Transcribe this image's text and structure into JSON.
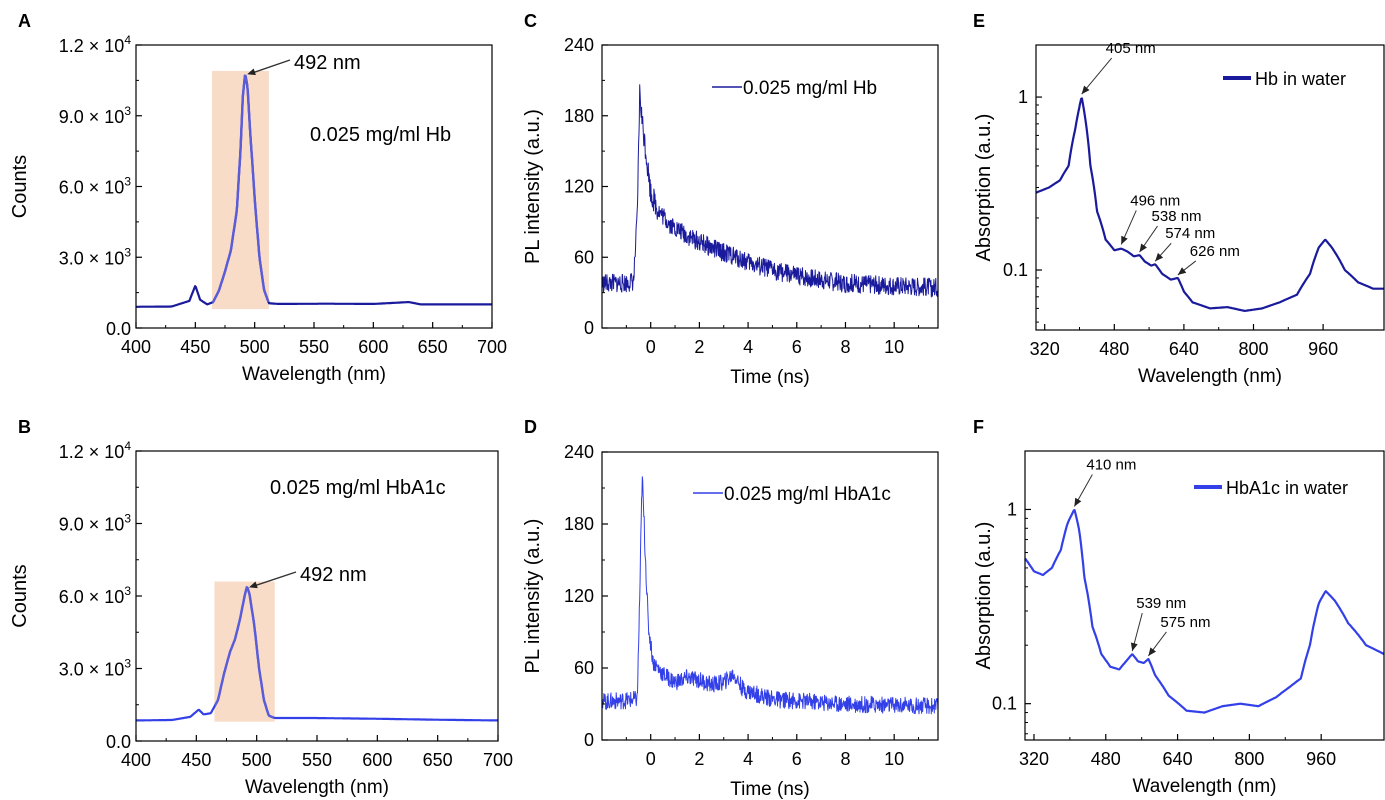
{
  "colors": {
    "dark_blue": "#1a1a9c",
    "blue": "#3340e8",
    "mid_blue": "#5a5cd8",
    "highlight": "#f8dcc8",
    "arrow": "#333333"
  },
  "chart_data": [
    {
      "panel": "A",
      "type": "line",
      "xlabel": "Wavelength (nm)",
      "ylabel": "Counts",
      "xlim": [
        400,
        700
      ],
      "ylim": [
        0,
        12000
      ],
      "xticks": [
        400,
        450,
        500,
        550,
        600,
        650,
        700
      ],
      "yticks": [
        0,
        3000,
        6000,
        9000,
        12000
      ],
      "ytick_labels": [
        {
          "m": "0.0",
          "e": ""
        },
        {
          "m": "3.0 × 10",
          "e": "3"
        },
        {
          "m": "6.0 × 10",
          "e": "3"
        },
        {
          "m": "9.0 × 10",
          "e": "3"
        },
        {
          "m": "1.2 × 10",
          "e": "4"
        }
      ],
      "annotation": "0.025 mg/ml Hb",
      "peak_label": "492 nm",
      "peak": {
        "x": 492,
        "y": 10800
      },
      "highlight": {
        "x": [
          464,
          512
        ],
        "y": [
          800,
          10900
        ]
      },
      "series": [
        {
          "points": [
            [
              400,
              900
            ],
            [
              430,
              910
            ],
            [
              445,
              1150
            ],
            [
              450,
              1800
            ],
            [
              454,
              1200
            ],
            [
              460,
              1000
            ],
            [
              465,
              1100
            ],
            [
              470,
              1600
            ],
            [
              475,
              2400
            ],
            [
              480,
              3300
            ],
            [
              485,
              5000
            ],
            [
              488,
              7500
            ],
            [
              490,
              9800
            ],
            [
              492,
              10800
            ],
            [
              494,
              10200
            ],
            [
              496,
              8500
            ],
            [
              500,
              5500
            ],
            [
              504,
              3000
            ],
            [
              508,
              1600
            ],
            [
              512,
              1050
            ],
            [
              520,
              1020
            ],
            [
              560,
              1030
            ],
            [
              600,
              1020
            ],
            [
              630,
              1100
            ],
            [
              640,
              1000
            ],
            [
              700,
              1000
            ]
          ]
        }
      ]
    },
    {
      "panel": "B",
      "type": "line",
      "xlabel": "Wavelength (nm)",
      "ylabel": "Counts",
      "xlim": [
        400,
        700
      ],
      "ylim": [
        0,
        12000
      ],
      "xticks": [
        400,
        450,
        500,
        550,
        600,
        650,
        700
      ],
      "yticks": [
        0,
        3000,
        6000,
        9000,
        12000
      ],
      "ytick_labels": [
        {
          "m": "0.0",
          "e": ""
        },
        {
          "m": "3.0 × 10",
          "e": "3"
        },
        {
          "m": "6.0 × 10",
          "e": "3"
        },
        {
          "m": "9.0 × 10",
          "e": "3"
        },
        {
          "m": "1.2 × 10",
          "e": "4"
        }
      ],
      "annotation": "0.025 mg/ml HbA1c",
      "peak_label": "492 nm",
      "peak": {
        "x": 492,
        "y": 6400
      },
      "highlight": {
        "x": [
          465,
          515
        ],
        "y": [
          800,
          6600
        ]
      },
      "series": [
        {
          "points": [
            [
              400,
              850
            ],
            [
              430,
              870
            ],
            [
              445,
              1000
            ],
            [
              452,
              1300
            ],
            [
              456,
              1100
            ],
            [
              462,
              1150
            ],
            [
              468,
              1700
            ],
            [
              473,
              2800
            ],
            [
              478,
              3700
            ],
            [
              482,
              4200
            ],
            [
              486,
              5000
            ],
            [
              490,
              6000
            ],
            [
              492,
              6400
            ],
            [
              494,
              6100
            ],
            [
              498,
              4800
            ],
            [
              502,
              3000
            ],
            [
              506,
              1700
            ],
            [
              510,
              1050
            ],
            [
              515,
              950
            ],
            [
              550,
              950
            ],
            [
              600,
              920
            ],
            [
              650,
              880
            ],
            [
              700,
              850
            ]
          ]
        }
      ]
    },
    {
      "panel": "C",
      "type": "line",
      "xlabel": "Time (ns)",
      "ylabel": "PL intensity (a.u.)",
      "xlim": [
        -2,
        11.8
      ],
      "ylim": [
        0,
        240
      ],
      "xticks": [
        0,
        2,
        4,
        6,
        8,
        10
      ],
      "yticks": [
        0,
        60,
        120,
        180,
        240
      ],
      "series": [
        {
          "name": "0.025 mg/ml Hb",
          "points": [
            [
              -2,
              38
            ],
            [
              -1,
              38
            ],
            [
              -0.7,
              40
            ],
            [
              -0.55,
              95
            ],
            [
              -0.45,
              200
            ],
            [
              -0.35,
              175
            ],
            [
              -0.2,
              150
            ],
            [
              0,
              115
            ],
            [
              0.3,
              100
            ],
            [
              0.8,
              88
            ],
            [
              1.5,
              78
            ],
            [
              2.5,
              68
            ],
            [
              3.5,
              60
            ],
            [
              4.5,
              52
            ],
            [
              6,
              44
            ],
            [
              8,
              38
            ],
            [
              11.8,
              34
            ]
          ],
          "noise": 8
        }
      ]
    },
    {
      "panel": "D",
      "type": "line",
      "xlabel": "Time (ns)",
      "ylabel": "PL intensity (a.u.)",
      "xlim": [
        -2,
        11.8
      ],
      "ylim": [
        0,
        240
      ],
      "xticks": [
        0,
        2,
        4,
        6,
        8,
        10
      ],
      "yticks": [
        0,
        60,
        120,
        180,
        240
      ],
      "series": [
        {
          "name": "0.025 mg/ml HbA1c",
          "points": [
            [
              -2,
              32
            ],
            [
              -1,
              33
            ],
            [
              -0.55,
              34
            ],
            [
              -0.45,
              120
            ],
            [
              -0.35,
              220
            ],
            [
              -0.25,
              170
            ],
            [
              -0.1,
              95
            ],
            [
              0.1,
              65
            ],
            [
              0.5,
              55
            ],
            [
              1,
              48
            ],
            [
              1.5,
              52
            ],
            [
              2,
              50
            ],
            [
              2.5,
              46
            ],
            [
              3,
              48
            ],
            [
              3.4,
              55
            ],
            [
              3.8,
              42
            ],
            [
              5,
              34
            ],
            [
              8,
              30
            ],
            [
              11.8,
              28
            ]
          ],
          "noise": 7
        }
      ]
    },
    {
      "panel": "E",
      "type": "line",
      "yscale": "log",
      "xlabel": "Wavelength (nm)",
      "ylabel": "Absorption (a.u.)",
      "xlim": [
        300,
        1100
      ],
      "ylim": [
        0.045,
        2.0
      ],
      "xticks": [
        320,
        480,
        640,
        800,
        960
      ],
      "ytick_labels": [
        "0.1",
        "1"
      ],
      "annotations": [
        {
          "text": "405 nm",
          "x": 405,
          "y": 1.0
        },
        {
          "text": "496 nm",
          "x": 496,
          "y": 0.135
        },
        {
          "text": "538 nm",
          "x": 538,
          "y": 0.122
        },
        {
          "text": "574 nm",
          "x": 574,
          "y": 0.108
        },
        {
          "text": "626 nm",
          "x": 626,
          "y": 0.09
        }
      ],
      "series": [
        {
          "name": "Hb in water",
          "points": [
            [
              300,
              0.28
            ],
            [
              330,
              0.3
            ],
            [
              355,
              0.33
            ],
            [
              375,
              0.4
            ],
            [
              390,
              0.65
            ],
            [
              405,
              1.0
            ],
            [
              415,
              0.7
            ],
            [
              425,
              0.4
            ],
            [
              440,
              0.22
            ],
            [
              460,
              0.15
            ],
            [
              480,
              0.13
            ],
            [
              496,
              0.133
            ],
            [
              510,
              0.128
            ],
            [
              525,
              0.12
            ],
            [
              538,
              0.122
            ],
            [
              550,
              0.112
            ],
            [
              565,
              0.106
            ],
            [
              574,
              0.108
            ],
            [
              590,
              0.095
            ],
            [
              610,
              0.088
            ],
            [
              626,
              0.09
            ],
            [
              640,
              0.075
            ],
            [
              660,
              0.065
            ],
            [
              700,
              0.06
            ],
            [
              740,
              0.061
            ],
            [
              780,
              0.058
            ],
            [
              820,
              0.06
            ],
            [
              860,
              0.065
            ],
            [
              900,
              0.072
            ],
            [
              930,
              0.095
            ],
            [
              950,
              0.135
            ],
            [
              965,
              0.15
            ],
            [
              980,
              0.135
            ],
            [
              1010,
              0.1
            ],
            [
              1040,
              0.085
            ],
            [
              1075,
              0.078
            ],
            [
              1100,
              0.078
            ]
          ]
        }
      ]
    },
    {
      "panel": "F",
      "type": "line",
      "yscale": "log",
      "xlabel": "Wavelength (nm)",
      "ylabel": "Absorption (a.u.)",
      "xlim": [
        300,
        1100
      ],
      "ylim": [
        0.065,
        2.0
      ],
      "xticks": [
        320,
        480,
        640,
        800,
        960
      ],
      "ytick_labels": [
        "0.1",
        "1"
      ],
      "annotations": [
        {
          "text": "410 nm",
          "x": 410,
          "y": 1.0
        },
        {
          "text": "539 nm",
          "x": 539,
          "y": 0.18
        },
        {
          "text": "575 nm",
          "x": 575,
          "y": 0.17
        }
      ],
      "series": [
        {
          "name": "HbA1c in water",
          "points": [
            [
              300,
              0.56
            ],
            [
              320,
              0.48
            ],
            [
              340,
              0.46
            ],
            [
              360,
              0.5
            ],
            [
              380,
              0.62
            ],
            [
              395,
              0.85
            ],
            [
              410,
              1.0
            ],
            [
              420,
              0.8
            ],
            [
              432,
              0.45
            ],
            [
              450,
              0.25
            ],
            [
              470,
              0.18
            ],
            [
              490,
              0.155
            ],
            [
              510,
              0.15
            ],
            [
              525,
              0.165
            ],
            [
              539,
              0.18
            ],
            [
              552,
              0.165
            ],
            [
              565,
              0.162
            ],
            [
              575,
              0.17
            ],
            [
              590,
              0.14
            ],
            [
              620,
              0.11
            ],
            [
              660,
              0.092
            ],
            [
              700,
              0.09
            ],
            [
              740,
              0.097
            ],
            [
              780,
              0.1
            ],
            [
              820,
              0.097
            ],
            [
              860,
              0.108
            ],
            [
              890,
              0.122
            ],
            [
              915,
              0.135
            ],
            [
              935,
              0.2
            ],
            [
              955,
              0.33
            ],
            [
              970,
              0.38
            ],
            [
              990,
              0.34
            ],
            [
              1020,
              0.26
            ],
            [
              1060,
              0.2
            ],
            [
              1100,
              0.18
            ]
          ]
        }
      ]
    }
  ]
}
